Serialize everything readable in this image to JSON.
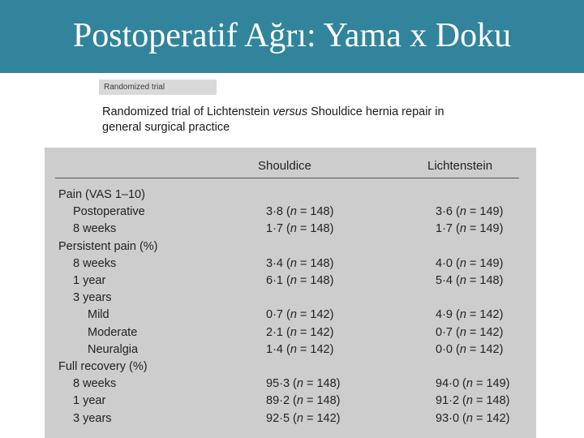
{
  "slide": {
    "title": "Postoperatif Ağrı: Yama x Doku"
  },
  "article": {
    "tag": "Randomized trial",
    "title_part1": "Randomized trial of Lichtenstein ",
    "title_italic": "versus",
    "title_part2": " Shouldice hernia repair in general surgical practice"
  },
  "table": {
    "columns": [
      "Shouldice",
      "Lichtenstein"
    ],
    "rows": [
      {
        "label": "Pain (VAS 1–10)",
        "indent": 0,
        "s_val": "",
        "s_n": "",
        "l_val": "",
        "l_n": ""
      },
      {
        "label": "Postoperative",
        "indent": 1,
        "s_val": "3·8",
        "s_n": "148",
        "l_val": "3·6",
        "l_n": "149"
      },
      {
        "label": "8 weeks",
        "indent": 1,
        "s_val": "1·7",
        "s_n": "148",
        "l_val": "1·7",
        "l_n": "149"
      },
      {
        "label": "Persistent pain (%)",
        "indent": 0,
        "s_val": "",
        "s_n": "",
        "l_val": "",
        "l_n": ""
      },
      {
        "label": "8 weeks",
        "indent": 1,
        "s_val": "3·4",
        "s_n": "148",
        "l_val": "4·0",
        "l_n": "149"
      },
      {
        "label": "1 year",
        "indent": 1,
        "s_val": "6·1",
        "s_n": "148",
        "l_val": "5·4",
        "l_n": "148"
      },
      {
        "label": "3 years",
        "indent": 1,
        "s_val": "",
        "s_n": "",
        "l_val": "",
        "l_n": ""
      },
      {
        "label": "Mild",
        "indent": 2,
        "s_val": "0·7",
        "s_n": "142",
        "l_val": "4·9",
        "l_n": "142"
      },
      {
        "label": "Moderate",
        "indent": 2,
        "s_val": "2·1",
        "s_n": "142",
        "l_val": "0·7",
        "l_n": "142"
      },
      {
        "label": "Neuralgia",
        "indent": 2,
        "s_val": "1·4",
        "s_n": "142",
        "l_val": "0·0",
        "l_n": "142"
      },
      {
        "label": "Full recovery (%)",
        "indent": 0,
        "s_val": "",
        "s_n": "",
        "l_val": "",
        "l_n": ""
      },
      {
        "label": "8 weeks",
        "indent": 1,
        "s_val": "95·3",
        "s_n": "148",
        "l_val": "94·0",
        "l_n": "149"
      },
      {
        "label": "1 year",
        "indent": 1,
        "s_val": "89·2",
        "s_n": "148",
        "l_val": "91·2",
        "l_n": "148"
      },
      {
        "label": "3 years",
        "indent": 1,
        "s_val": "92·5",
        "s_n": "142",
        "l_val": "93·0",
        "l_n": "142"
      }
    ]
  },
  "colors": {
    "title_bar": "#31849b",
    "table_background": "#cdcdcd",
    "tag_background": "#d9d9d9"
  }
}
